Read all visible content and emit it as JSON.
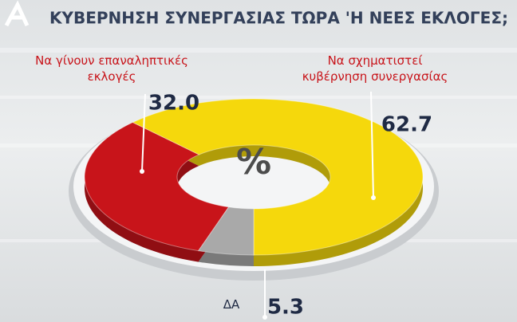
{
  "chart_data": {
    "type": "pie",
    "donut": true,
    "title": "ΚΥΒΕΡΝΗΣΗ ΣΥΝΕΡΓΑΣΙΑΣ ΤΩΡΑ 'Η ΝΕΕΣ ΕΚΛΟΓΕΣ;",
    "center_label": "%",
    "categories": [
      "Να σχηματιστεί κυβέρνηση συνεργασίας",
      "Να γίνουν επαναληπτικές εκλογές",
      "ΔΑ"
    ],
    "values": [
      62.7,
      32.0,
      5.3
    ],
    "value_labels": [
      "62.7",
      "32.0",
      "5.3"
    ],
    "colors": [
      "#f5d80c",
      "#c8141a",
      "#a9a9a9"
    ]
  }
}
